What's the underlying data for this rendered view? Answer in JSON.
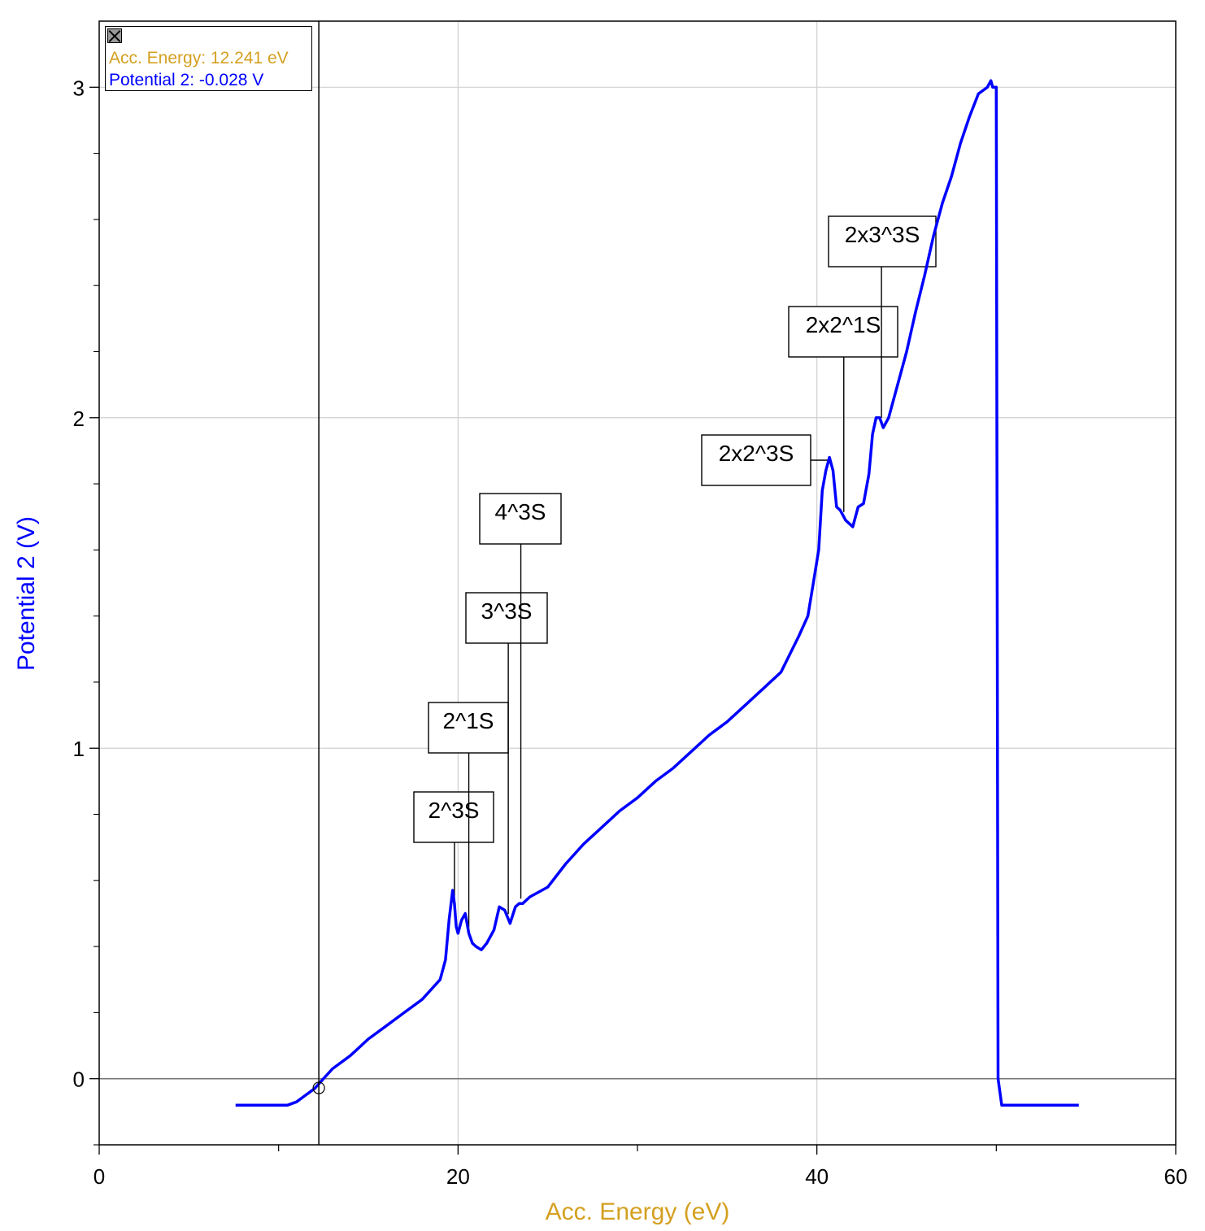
{
  "chart_data": {
    "type": "line",
    "xlabel": "Acc. Energy (eV)",
    "ylabel": "Potential 2 (V)",
    "xlim": [
      0,
      60
    ],
    "ylim": [
      -0.2,
      3.2
    ],
    "x_ticks": [
      "0",
      "20",
      "40",
      "60"
    ],
    "y_ticks": [
      "0",
      "1",
      "2",
      "3"
    ],
    "grid": true,
    "colors": {
      "series": "#0000ff",
      "xlabel": "#d4a020",
      "ylabel": "#0000ff",
      "grid": "#d0d0d0"
    },
    "series": [
      {
        "x": [
          7.6,
          8.5,
          9.5,
          10.5,
          11.0,
          11.5,
          12.0,
          12.5,
          13.0,
          14.0,
          15.0,
          16.0,
          17.0,
          18.0,
          19.0,
          19.3,
          19.5,
          19.7,
          19.8,
          19.9,
          20.0,
          20.2,
          20.4,
          20.6,
          20.8,
          21.0,
          21.3,
          21.6,
          22.0,
          22.3,
          22.6,
          22.9,
          23.2,
          23.4,
          23.6,
          24.0,
          25.0,
          26.0,
          27.0,
          28.0,
          29.0,
          30.0,
          31.0,
          32.0,
          33.0,
          34.0,
          35.0,
          36.0,
          37.0,
          38.0,
          39.0,
          39.5,
          39.8,
          40.1,
          40.3,
          40.5,
          40.7,
          40.9,
          41.1,
          41.3,
          41.6,
          42.0,
          42.3,
          42.6,
          42.9,
          43.1,
          43.3,
          43.5,
          43.7,
          44.0,
          44.5,
          45.0,
          45.5,
          46.0,
          46.5,
          47.0,
          47.5,
          48.0,
          48.5,
          49.0,
          49.5,
          49.7,
          49.8,
          49.9,
          50.0,
          50.1,
          50.3,
          51.0,
          52.0,
          53.0,
          54.0,
          54.6
        ],
        "y": [
          -0.08,
          -0.08,
          -0.08,
          -0.08,
          -0.07,
          -0.05,
          -0.03,
          0.0,
          0.03,
          0.07,
          0.12,
          0.16,
          0.2,
          0.24,
          0.3,
          0.36,
          0.48,
          0.57,
          0.53,
          0.46,
          0.44,
          0.48,
          0.5,
          0.44,
          0.41,
          0.4,
          0.39,
          0.41,
          0.45,
          0.52,
          0.51,
          0.47,
          0.52,
          0.53,
          0.53,
          0.55,
          0.58,
          0.65,
          0.71,
          0.76,
          0.81,
          0.85,
          0.9,
          0.94,
          0.99,
          1.04,
          1.08,
          1.13,
          1.18,
          1.23,
          1.34,
          1.4,
          1.5,
          1.6,
          1.78,
          1.84,
          1.88,
          1.84,
          1.73,
          1.72,
          1.69,
          1.67,
          1.73,
          1.74,
          1.83,
          1.95,
          2.0,
          2.0,
          1.97,
          2.0,
          2.1,
          2.2,
          2.32,
          2.43,
          2.55,
          2.65,
          2.73,
          2.83,
          2.91,
          2.98,
          3.0,
          3.02,
          3.0,
          3.0,
          3.0,
          0.0,
          -0.08,
          -0.08,
          -0.08,
          -0.08,
          -0.08,
          -0.08
        ]
      }
    ],
    "annotations": [
      {
        "label": "2^3S",
        "x": 19.8
      },
      {
        "label": "2^1S",
        "x": 20.6
      },
      {
        "label": "3^3S",
        "x": 22.8
      },
      {
        "label": "4^3S",
        "x": 23.5
      },
      {
        "label": "2x2^3S",
        "x": 40.7
      },
      {
        "label": "2x2^1S",
        "x": 41.5
      },
      {
        "label": "2x3^3S",
        "x": 43.6
      }
    ],
    "cursor": {
      "x": 12.241,
      "y": -0.028
    }
  },
  "readout": {
    "energy_text": "Acc. Energy: 12.241 eV",
    "potential_text": "Potential 2: -0.028 V"
  }
}
